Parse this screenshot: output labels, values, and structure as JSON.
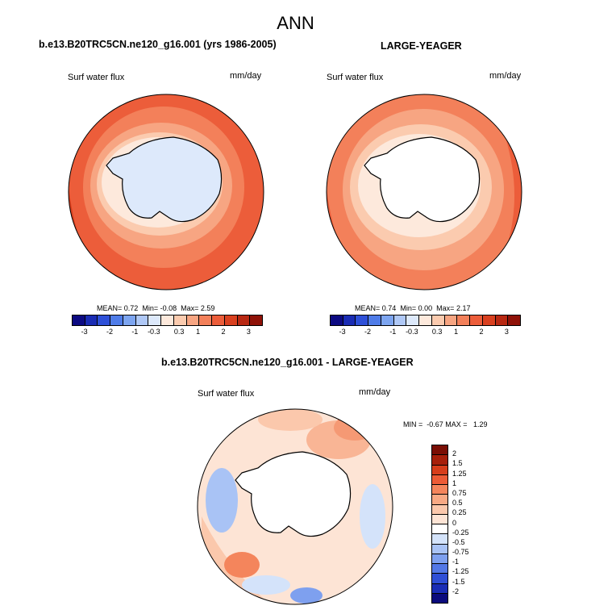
{
  "figure": {
    "title": "ANN"
  },
  "chart_data": [
    {
      "type": "heatmap",
      "projection": "polar-stereographic-south",
      "title": "b.e13.B20TRC5CN.ne120_g16.001 (yrs 1986-2005)",
      "field_label": "Surf water flux",
      "units": "mm/day",
      "stats": {
        "mean_label": "MEAN=",
        "mean": "0.72",
        "min_label": "Min=",
        "min": "-0.08",
        "max_label": "Max=",
        "max": "2.59"
      },
      "colorbar_ticks": [
        "-3",
        "-2",
        "-1",
        "-0.3",
        "0.3",
        "1",
        "2",
        "3"
      ],
      "antarctica_fill": "light-blue"
    },
    {
      "type": "heatmap",
      "projection": "polar-stereographic-south",
      "title": "LARGE-YEAGER",
      "field_label": "Surf water flux",
      "units": "mm/day",
      "stats": {
        "mean_label": "MEAN=",
        "mean": "0.74",
        "min_label": "Min=",
        "min": "0.00",
        "max_label": "Max=",
        "max": "2.17"
      },
      "colorbar_ticks": [
        "-3",
        "-2",
        "-1",
        "-0.3",
        "0.3",
        "1",
        "2",
        "3"
      ],
      "antarctica_fill": "white"
    },
    {
      "type": "heatmap",
      "projection": "polar-stereographic-south",
      "title": "b.e13.B20TRC5CN.ne120_g16.001 - LARGE-YEAGER",
      "field_label": "Surf water flux",
      "units": "mm/day",
      "stats": {
        "text": "MIN =  -0.67 MAX =   1.29"
      },
      "colorbar_ticks": [
        "2",
        "1.5",
        "1.25",
        "1",
        "0.75",
        "0.5",
        "0.25",
        "0",
        "-0.25",
        "-0.5",
        "-0.75",
        "-1",
        "-1.25",
        "-1.5",
        "-2"
      ]
    }
  ],
  "colors": {
    "abs_scale": [
      "#0c0a82",
      "#1a2cb4",
      "#2e50d8",
      "#4f7ce8",
      "#7da5f0",
      "#afc8f6",
      "#dde9fb",
      "#fde9dc",
      "#fbcbaf",
      "#f7a582",
      "#f3805a",
      "#ec5d3a",
      "#d9401f",
      "#b82812",
      "#8f1208"
    ],
    "diff_scale": [
      "#0b0b7d",
      "#1a2db5",
      "#2f4fd6",
      "#5378e6",
      "#7ea0ef",
      "#a9c3f5",
      "#d4e3fa",
      "#ffffff",
      "#fde4d5",
      "#fbc8ac",
      "#f8a984",
      "#f4855c",
      "#ec5b36",
      "#d63d1b",
      "#a61f0b",
      "#7a0e05"
    ]
  }
}
